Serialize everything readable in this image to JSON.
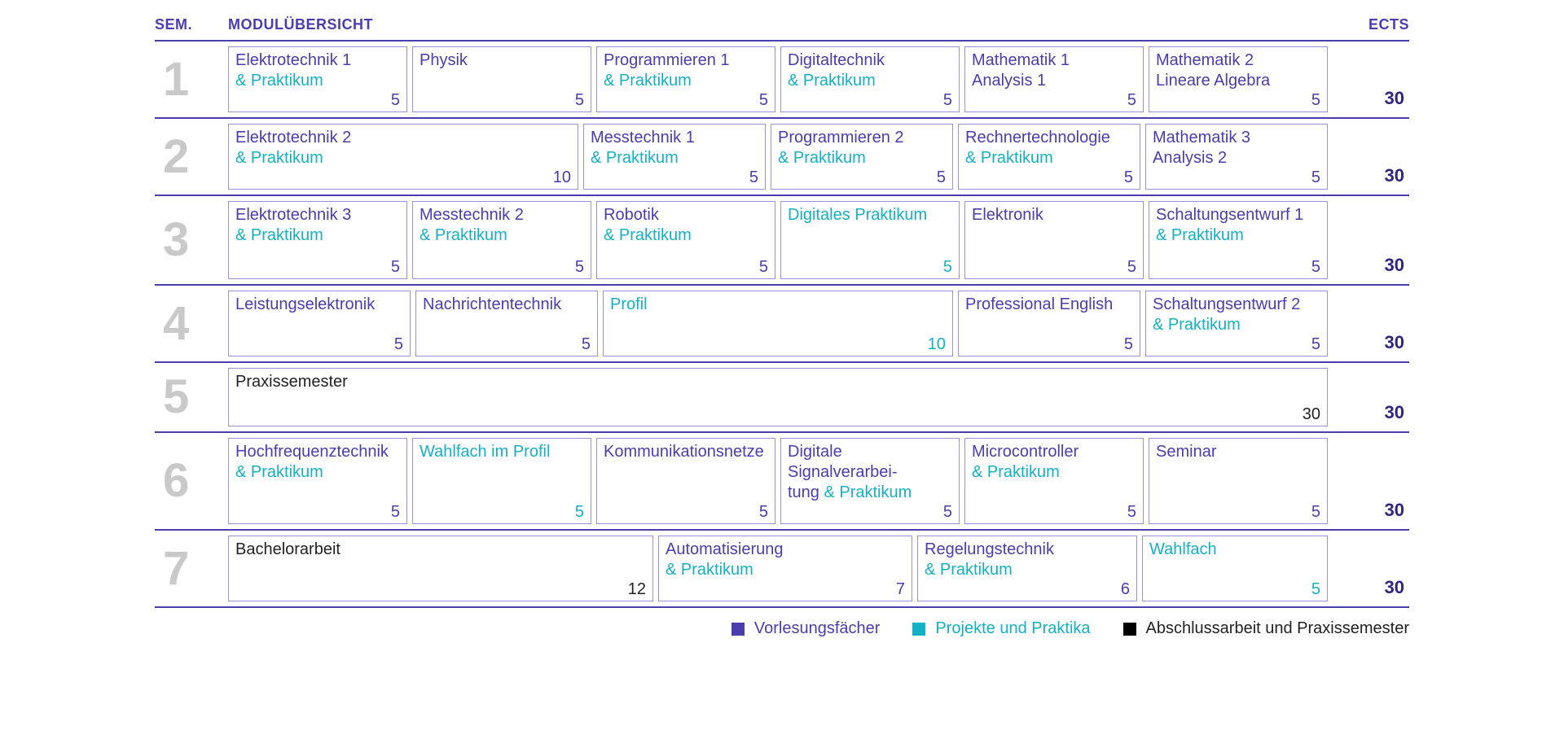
{
  "header": {
    "sem": "SEM.",
    "title": "MODULÜBERSICHT",
    "ects": "ECTS"
  },
  "colors": {
    "lecture": "#4a3db0",
    "project": "#14b0c4",
    "thesis": "#222222",
    "border": "#9a8fd9",
    "semnum": "#c9c9c9"
  },
  "grid_units": 30,
  "semesters": [
    {
      "num": "1",
      "total": "30",
      "modules": [
        {
          "lines": [
            [
              "Elektrotechnik 1",
              "lec"
            ],
            [
              "& Praktikum",
              "prk"
            ]
          ],
          "span": 5,
          "ects": "5",
          "ects_color": "lec"
        },
        {
          "lines": [
            [
              "Physik",
              "lec"
            ]
          ],
          "span": 5,
          "ects": "5",
          "ects_color": "lec"
        },
        {
          "lines": [
            [
              "Programmieren 1",
              "lec"
            ],
            [
              "& Praktikum",
              "prk"
            ]
          ],
          "span": 5,
          "ects": "5",
          "ects_color": "lec"
        },
        {
          "lines": [
            [
              "Digitaltechnik",
              "lec"
            ],
            [
              "& Praktikum",
              "prk"
            ]
          ],
          "span": 5,
          "ects": "5",
          "ects_color": "lec"
        },
        {
          "lines": [
            [
              "Mathematik 1",
              "lec"
            ],
            [
              "Analysis 1",
              "lec"
            ]
          ],
          "span": 5,
          "ects": "5",
          "ects_color": "lec"
        },
        {
          "lines": [
            [
              "Mathematik 2",
              "lec"
            ],
            [
              "Lineare Algebra",
              "lec"
            ]
          ],
          "span": 5,
          "ects": "5",
          "ects_color": "lec"
        }
      ]
    },
    {
      "num": "2",
      "total": "30",
      "modules": [
        {
          "lines": [
            [
              "Elektrotechnik 2",
              "lec"
            ],
            [
              "& Praktikum",
              "prk"
            ]
          ],
          "span": 10,
          "ects": "10",
          "ects_color": "lec"
        },
        {
          "lines": [
            [
              "Messtechnik 1",
              "lec"
            ],
            [
              "& Praktikum",
              "prk"
            ]
          ],
          "span": 5,
          "ects": "5",
          "ects_color": "lec"
        },
        {
          "lines": [
            [
              "Programmieren 2",
              "lec"
            ],
            [
              "& Praktikum",
              "prk"
            ]
          ],
          "span": 5,
          "ects": "5",
          "ects_color": "lec"
        },
        {
          "lines": [
            [
              "Rechnertechnologie",
              "lec"
            ],
            [
              "& Praktikum",
              "prk"
            ]
          ],
          "span": 5,
          "ects": "5",
          "ects_color": "lec"
        },
        {
          "lines": [
            [
              "Mathematik 3",
              "lec"
            ],
            [
              "Analysis 2",
              "lec"
            ]
          ],
          "span": 5,
          "ects": "5",
          "ects_color": "lec"
        }
      ]
    },
    {
      "num": "3",
      "total": "30",
      "tall": true,
      "modules": [
        {
          "lines": [
            [
              "Elektrotechnik 3",
              "lec"
            ],
            [
              "& Praktikum",
              "prk"
            ]
          ],
          "span": 5,
          "ects": "5",
          "ects_color": "lec"
        },
        {
          "lines": [
            [
              "Messtechnik 2",
              "lec"
            ],
            [
              "& Praktikum",
              "prk"
            ]
          ],
          "span": 5,
          "ects": "5",
          "ects_color": "lec"
        },
        {
          "lines": [
            [
              "Robotik",
              "lec"
            ],
            [
              "& Praktikum",
              "prk"
            ]
          ],
          "span": 5,
          "ects": "5",
          "ects_color": "lec"
        },
        {
          "lines": [
            [
              "Digitales Praktikum",
              "prk"
            ]
          ],
          "span": 5,
          "ects": "5",
          "ects_color": "prk"
        },
        {
          "lines": [
            [
              "Elektronik",
              "lec"
            ]
          ],
          "span": 5,
          "ects": "5",
          "ects_color": "lec"
        },
        {
          "lines": [
            [
              "Schaltungsentwurf 1",
              "lec"
            ],
            [
              "& Praktikum",
              "prk"
            ]
          ],
          "span": 5,
          "ects": "5",
          "ects_color": "lec"
        }
      ]
    },
    {
      "num": "4",
      "total": "30",
      "modules": [
        {
          "lines": [
            [
              "Leistungselektronik",
              "lec"
            ]
          ],
          "span": 5,
          "ects": "5",
          "ects_color": "lec"
        },
        {
          "lines": [
            [
              "Nachrichtentechnik",
              "lec"
            ]
          ],
          "span": 5,
          "ects": "5",
          "ects_color": "lec"
        },
        {
          "lines": [
            [
              "Profil",
              "prk"
            ]
          ],
          "span": 10,
          "ects": "10",
          "ects_color": "prk"
        },
        {
          "lines": [
            [
              "Professional English",
              "lec"
            ]
          ],
          "span": 5,
          "ects": "5",
          "ects_color": "lec"
        },
        {
          "lines": [
            [
              "Schaltungsentwurf 2",
              "lec"
            ],
            [
              "& Praktikum",
              "prk"
            ]
          ],
          "span": 5,
          "ects": "5",
          "ects_color": "lec"
        }
      ]
    },
    {
      "num": "5",
      "total": "30",
      "modules": [
        {
          "lines": [
            [
              "Praxissemester",
              "abs"
            ]
          ],
          "span": 30,
          "ects": "30",
          "ects_color": "abs"
        }
      ]
    },
    {
      "num": "6",
      "total": "30",
      "modules": [
        {
          "lines": [
            [
              "Hochfrequenztechnik",
              "lec"
            ],
            [
              "& Praktikum",
              "prk"
            ]
          ],
          "span": 5,
          "ects": "5",
          "ects_color": "lec"
        },
        {
          "lines": [
            [
              "Wahlfach im Profil",
              "prk"
            ]
          ],
          "span": 5,
          "ects": "5",
          "ects_color": "prk"
        },
        {
          "lines": [
            [
              "Kommunikationsnetze",
              "lec"
            ]
          ],
          "span": 5,
          "ects": "5",
          "ects_color": "lec"
        },
        {
          "lines": [
            [
              "Digitale Signalverarbei-",
              "lec"
            ],
            [
              "tung ",
              "lec",
              "& Praktikum",
              "prk"
            ]
          ],
          "span": 5,
          "ects": "5",
          "ects_color": "lec"
        },
        {
          "lines": [
            [
              "Microcontroller",
              "lec"
            ],
            [
              "& Praktikum",
              "prk"
            ]
          ],
          "span": 5,
          "ects": "5",
          "ects_color": "lec"
        },
        {
          "lines": [
            [
              "Seminar",
              "lec"
            ]
          ],
          "span": 5,
          "ects": "5",
          "ects_color": "lec"
        }
      ]
    },
    {
      "num": "7",
      "total": "30",
      "modules": [
        {
          "lines": [
            [
              "Bachelorarbeit",
              "abs"
            ]
          ],
          "span": 12,
          "ects": "12",
          "ects_color": "abs"
        },
        {
          "lines": [
            [
              "Automatisierung",
              "lec"
            ],
            [
              "& Praktikum",
              "prk"
            ]
          ],
          "span": 7,
          "ects": "7",
          "ects_color": "lec"
        },
        {
          "lines": [
            [
              "Regelungstechnik",
              "lec"
            ],
            [
              "& Praktikum",
              "prk"
            ]
          ],
          "span": 6,
          "ects": "6",
          "ects_color": "lec"
        },
        {
          "lines": [
            [
              "Wahlfach",
              "prk"
            ]
          ],
          "span": 5,
          "ects": "5",
          "ects_color": "prk"
        }
      ]
    }
  ],
  "legend": [
    {
      "label": "Vorlesungsfächer",
      "color": "#4a3db0",
      "text_color": "lec"
    },
    {
      "label": "Projekte und Praktika",
      "color": "#14b0c4",
      "text_color": "prk"
    },
    {
      "label": "Abschlussarbeit und Praxissemester",
      "color": "#000000",
      "text_color": "abs"
    }
  ]
}
